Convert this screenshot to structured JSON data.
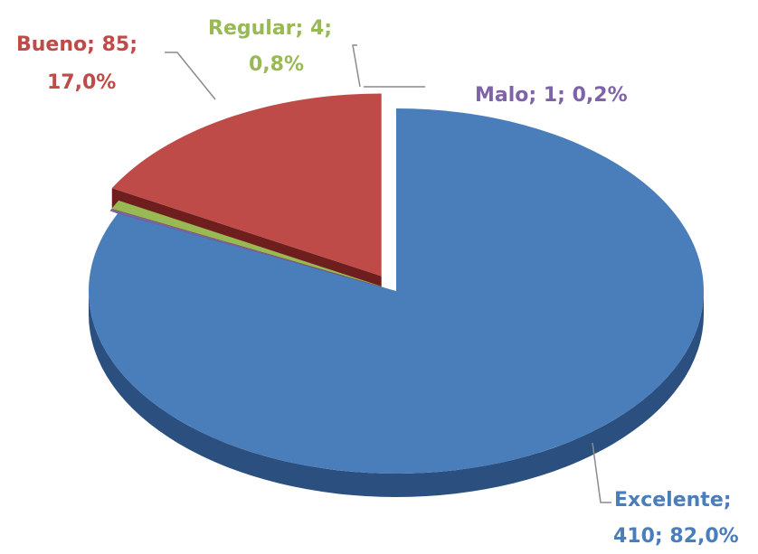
{
  "chart_data": {
    "type": "pie",
    "style": "3d-exploded",
    "slices": [
      {
        "name": "Excelente",
        "value": 410,
        "percent": "82,0%",
        "color": "#4a7ebb",
        "dark": "#2b4f7e",
        "label_line1": "Excelente;",
        "label_line2": "410; 82,0%"
      },
      {
        "name": "Malo",
        "value": 1,
        "percent": "0,2%",
        "color": "#7e63a8",
        "dark": "#4e3c6e",
        "label_line1": "Malo; 1; 0,2%",
        "label_line2": ""
      },
      {
        "name": "Regular",
        "value": 4,
        "percent": "0,8%",
        "color": "#98b954",
        "dark": "#5e7a2c",
        "label_line1": "Regular; 4;",
        "label_line2": "0,8%"
      },
      {
        "name": "Bueno",
        "value": 85,
        "percent": "17,0%",
        "color": "#be4b48",
        "dark": "#6e1f1d",
        "label_line1": "Bueno; 85;",
        "label_line2": "17,0%"
      }
    ],
    "legend": "none",
    "title": ""
  }
}
